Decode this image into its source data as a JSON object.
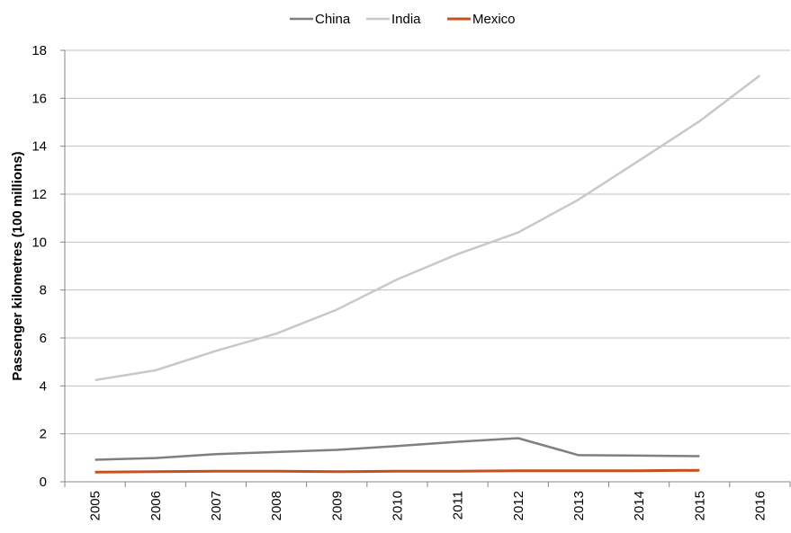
{
  "chart_data": {
    "type": "line",
    "title": "",
    "xlabel": "",
    "ylabel": "Passenger kilometres (100 millions)",
    "categories": [
      "2005",
      "2006",
      "2007",
      "2008",
      "2009",
      "2010",
      "2011",
      "2012",
      "2013",
      "2014",
      "2015",
      "2016"
    ],
    "ylim": [
      0,
      18
    ],
    "yticks": [
      "0",
      "2",
      "4",
      "6",
      "8",
      "10",
      "12",
      "14",
      "16",
      "18"
    ],
    "grid": true,
    "legend_position": "top",
    "series": [
      {
        "name": "China",
        "color": "#7f7f7f",
        "values": [
          0.92,
          0.99,
          1.15,
          1.24,
          1.33,
          1.49,
          1.67,
          1.82,
          1.11,
          1.09,
          1.07,
          null
        ]
      },
      {
        "name": "India",
        "color": "#c8c8c8",
        "values": [
          4.24,
          4.65,
          5.46,
          6.18,
          7.18,
          8.44,
          9.5,
          10.4,
          11.77,
          13.4,
          15.04,
          16.95
        ]
      },
      {
        "name": "Mexico",
        "color": "#c8501e",
        "values": [
          0.4,
          0.42,
          0.44,
          0.44,
          0.42,
          0.44,
          0.44,
          0.46,
          0.46,
          0.46,
          0.48,
          null
        ]
      }
    ]
  }
}
